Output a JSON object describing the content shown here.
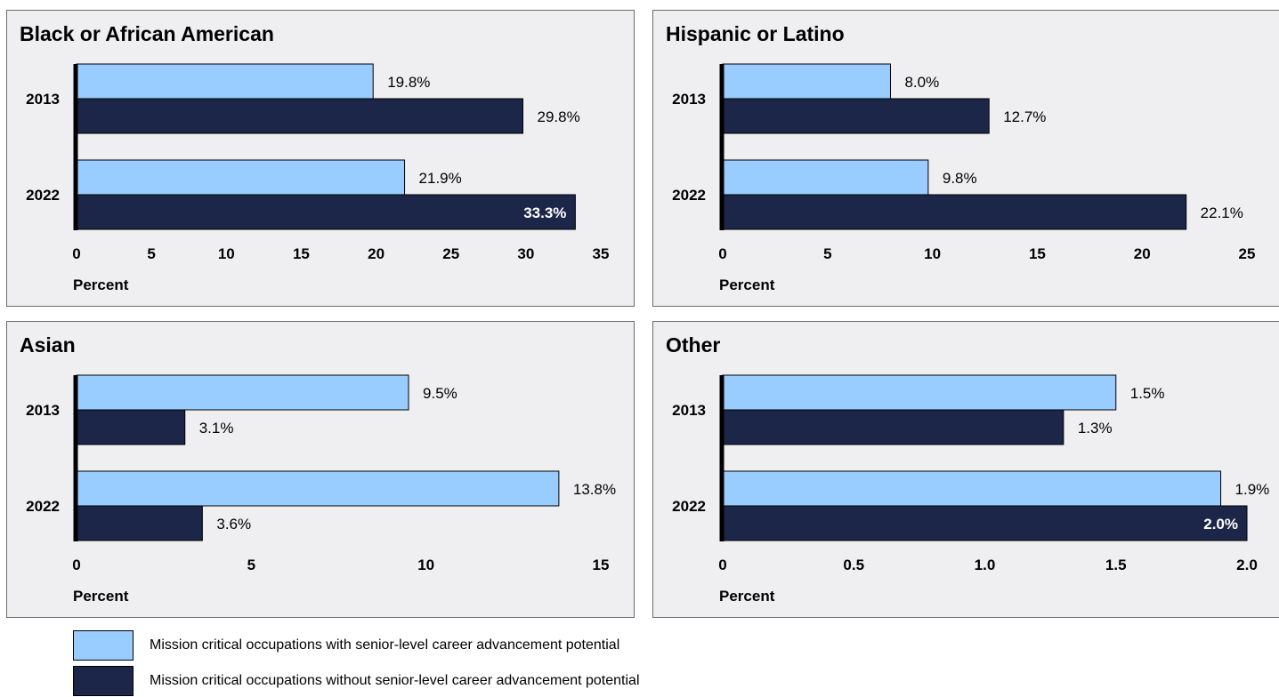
{
  "colors": {
    "with_potential": "#99ccff",
    "without_potential": "#1b2648",
    "panel_bg": "#efeff1"
  },
  "legend": [
    {
      "label": "Mission critical occupations with senior-level career advancement potential",
      "color": "#99ccff"
    },
    {
      "label": "Mission critical occupations without senior-level career advancement potential",
      "color": "#1b2648"
    }
  ],
  "chart_data": [
    {
      "type": "bar",
      "orientation": "horizontal",
      "title": "Black or African American",
      "categories": [
        "2013",
        "2022"
      ],
      "series": [
        {
          "name": "Mission critical occupations with senior-level career advancement potential",
          "values": [
            19.8,
            21.9
          ],
          "labels": [
            "19.8%",
            "21.9%"
          ]
        },
        {
          "name": "Mission critical occupations without senior-level career advancement potential",
          "values": [
            29.8,
            33.3
          ],
          "labels": [
            "29.8%",
            "33.3%"
          ]
        }
      ],
      "xlabel": "Percent",
      "xlim": [
        0,
        35
      ],
      "ticks": [
        0,
        5,
        10,
        15,
        20,
        25,
        30,
        35
      ],
      "tick_labels": [
        "0",
        "5",
        "10",
        "15",
        "20",
        "25",
        "30",
        "35"
      ]
    },
    {
      "type": "bar",
      "orientation": "horizontal",
      "title": "Hispanic or Latino",
      "categories": [
        "2013",
        "2022"
      ],
      "series": [
        {
          "name": "Mission critical occupations with senior-level career advancement potential",
          "values": [
            8.0,
            9.8
          ],
          "labels": [
            "8.0%",
            "9.8%"
          ]
        },
        {
          "name": "Mission critical occupations without senior-level career advancement potential",
          "values": [
            12.7,
            22.1
          ],
          "labels": [
            "12.7%",
            "22.1%"
          ]
        }
      ],
      "xlabel": "Percent",
      "xlim": [
        0,
        25
      ],
      "ticks": [
        0,
        5,
        10,
        15,
        20,
        25
      ],
      "tick_labels": [
        "0",
        "5",
        "10",
        "15",
        "20",
        "25"
      ]
    },
    {
      "type": "bar",
      "orientation": "horizontal",
      "title": "Asian",
      "categories": [
        "2013",
        "2022"
      ],
      "series": [
        {
          "name": "Mission critical occupations with senior-level career advancement potential",
          "values": [
            9.5,
            13.8
          ],
          "labels": [
            "9.5%",
            "13.8%"
          ]
        },
        {
          "name": "Mission critical occupations without senior-level career advancement potential",
          "values": [
            3.1,
            3.6
          ],
          "labels": [
            "3.1%",
            "3.6%"
          ]
        }
      ],
      "xlabel": "Percent",
      "xlim": [
        0,
        15
      ],
      "ticks": [
        0,
        5,
        10,
        15
      ],
      "tick_labels": [
        "0",
        "5",
        "10",
        "15"
      ]
    },
    {
      "type": "bar",
      "orientation": "horizontal",
      "title": "Other",
      "categories": [
        "2013",
        "2022"
      ],
      "series": [
        {
          "name": "Mission critical occupations with senior-level career advancement potential",
          "values": [
            1.5,
            1.9
          ],
          "labels": [
            "1.5%",
            "1.9%"
          ]
        },
        {
          "name": "Mission critical occupations without senior-level career advancement potential",
          "values": [
            1.3,
            2.0
          ],
          "labels": [
            "1.3%",
            "2.0%"
          ]
        }
      ],
      "xlabel": "Percent",
      "xlim": [
        0,
        2.0
      ],
      "ticks": [
        0,
        0.5,
        1.0,
        1.5,
        2.0
      ],
      "tick_labels": [
        "0",
        "0.5",
        "1.0",
        "1.5",
        "2.0"
      ]
    }
  ]
}
